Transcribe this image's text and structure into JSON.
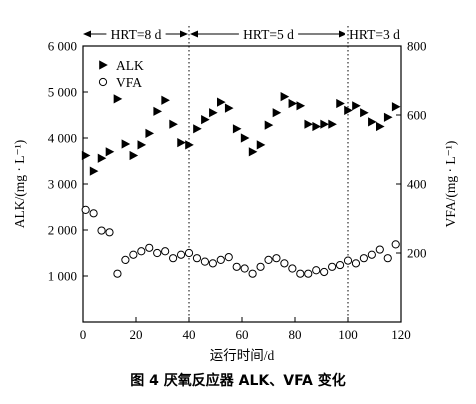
{
  "chart_data": {
    "type": "scatter",
    "xlabel": "运行时间/d",
    "ylabel_left": "ALK/(mg · L⁻¹)",
    "ylabel_right": "VFA/(mg · L⁻¹)",
    "xlim": [
      0,
      120
    ],
    "ylim_left": [
      0,
      6000
    ],
    "ylim_right": [
      0,
      800
    ],
    "x_ticks": [
      "0",
      "20",
      "40",
      "60",
      "80",
      "100",
      "120"
    ],
    "y_left_ticks": [
      "1 000",
      "2 000",
      "3 000",
      "4 000",
      "5 000",
      "6 000"
    ],
    "y_right_ticks": [
      "200",
      "400",
      "600",
      "800"
    ],
    "phases": [
      {
        "label": "HRT=8 d",
        "start": 0,
        "end": 40
      },
      {
        "label": "HRT=5 d",
        "start": 40,
        "end": 100
      },
      {
        "label": "HRT=3 d",
        "start": 100,
        "end": 120
      }
    ],
    "legend": {
      "position": "top-left"
    },
    "series": [
      {
        "name": "ALK",
        "axis": "left",
        "marker": "filled-right-triangle",
        "points": [
          [
            1,
            3620
          ],
          [
            4,
            3280
          ],
          [
            7,
            3560
          ],
          [
            10,
            3700
          ],
          [
            13,
            4850
          ],
          [
            16,
            3870
          ],
          [
            19,
            3620
          ],
          [
            22,
            3850
          ],
          [
            25,
            4100
          ],
          [
            28,
            4580
          ],
          [
            31,
            4820
          ],
          [
            34,
            4300
          ],
          [
            37,
            3900
          ],
          [
            40,
            3850
          ],
          [
            43,
            4200
          ],
          [
            46,
            4400
          ],
          [
            49,
            4550
          ],
          [
            52,
            4780
          ],
          [
            55,
            4650
          ],
          [
            58,
            4200
          ],
          [
            61,
            4000
          ],
          [
            64,
            3700
          ],
          [
            67,
            3850
          ],
          [
            70,
            4280
          ],
          [
            73,
            4550
          ],
          [
            76,
            4900
          ],
          [
            79,
            4750
          ],
          [
            82,
            4700
          ],
          [
            85,
            4300
          ],
          [
            88,
            4250
          ],
          [
            91,
            4300
          ],
          [
            94,
            4300
          ],
          [
            97,
            4750
          ],
          [
            100,
            4600
          ],
          [
            103,
            4700
          ],
          [
            106,
            4550
          ],
          [
            109,
            4350
          ],
          [
            112,
            4250
          ],
          [
            115,
            4450
          ],
          [
            118,
            4680
          ]
        ]
      },
      {
        "name": "VFA",
        "axis": "right",
        "marker": "open-circle",
        "points": [
          [
            1,
            325
          ],
          [
            4,
            315
          ],
          [
            7,
            265
          ],
          [
            10,
            260
          ],
          [
            13,
            140
          ],
          [
            16,
            180
          ],
          [
            19,
            195
          ],
          [
            22,
            205
          ],
          [
            25,
            215
          ],
          [
            28,
            200
          ],
          [
            31,
            205
          ],
          [
            34,
            185
          ],
          [
            37,
            195
          ],
          [
            40,
            200
          ],
          [
            43,
            185
          ],
          [
            46,
            175
          ],
          [
            49,
            170
          ],
          [
            52,
            180
          ],
          [
            55,
            188
          ],
          [
            58,
            160
          ],
          [
            61,
            155
          ],
          [
            64,
            140
          ],
          [
            67,
            160
          ],
          [
            70,
            180
          ],
          [
            73,
            185
          ],
          [
            76,
            170
          ],
          [
            79,
            155
          ],
          [
            82,
            140
          ],
          [
            85,
            140
          ],
          [
            88,
            150
          ],
          [
            91,
            145
          ],
          [
            94,
            160
          ],
          [
            97,
            165
          ],
          [
            100,
            178
          ],
          [
            103,
            170
          ],
          [
            106,
            185
          ],
          [
            109,
            195
          ],
          [
            112,
            210
          ],
          [
            115,
            185
          ],
          [
            118,
            225
          ]
        ]
      }
    ]
  },
  "caption": "图 4   厌氧反应器 ALK、VFA 变化"
}
